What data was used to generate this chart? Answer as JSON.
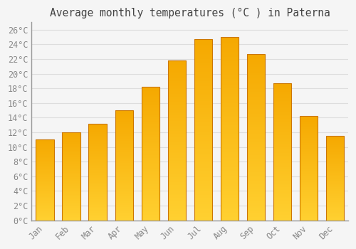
{
  "title": "Average monthly temperatures (°C ) in Paterna",
  "months": [
    "Jan",
    "Feb",
    "Mar",
    "Apr",
    "May",
    "Jun",
    "Jul",
    "Aug",
    "Sep",
    "Oct",
    "Nov",
    "Dec"
  ],
  "values": [
    11.0,
    12.0,
    13.2,
    15.0,
    18.2,
    21.8,
    24.7,
    25.0,
    22.7,
    18.7,
    14.2,
    11.5
  ],
  "bar_color_top": "#F5A800",
  "bar_color_bottom": "#FFD030",
  "bar_edge_color": "#CC7700",
  "ylim": [
    0,
    27
  ],
  "ytick_step": 2,
  "background_color": "#f5f5f5",
  "grid_color": "#dddddd",
  "tick_label_color": "#888888",
  "title_color": "#444444",
  "title_fontsize": 10.5,
  "tick_fontsize": 8.5,
  "font_family": "monospace"
}
